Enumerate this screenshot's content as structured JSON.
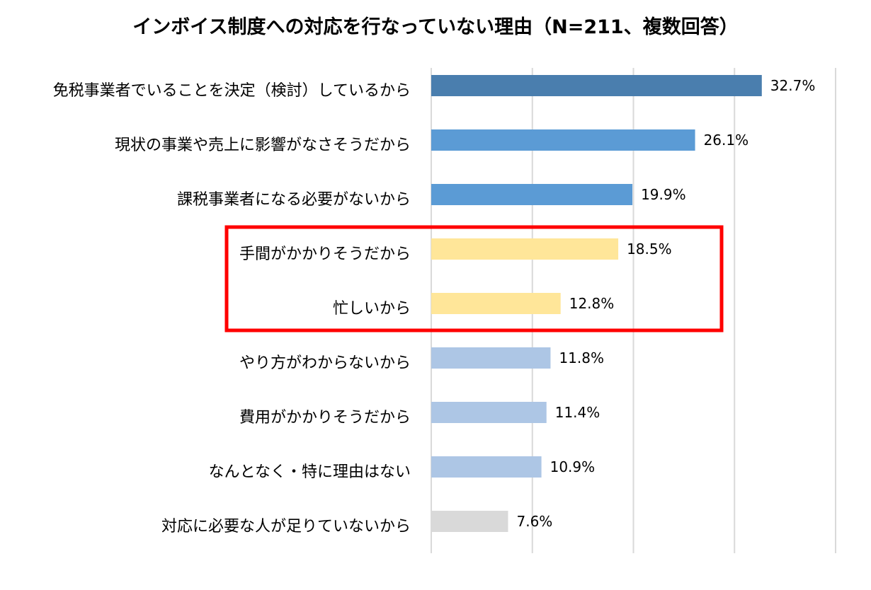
{
  "chart_data": {
    "type": "bar",
    "orientation": "horizontal",
    "title": "インボイス制度への対応を行なっていない理由（N=211、複数回答）",
    "categories": [
      "免税事業者でいることを決定（検討）しているから",
      "現状の事業や売上に影響がなさそうだから",
      "課税事業者になる必要がないから",
      "手間がかかりそうだから",
      "忙しいから",
      "やり方がわからないから",
      "費用がかかりそうだから",
      "なんとなく・特に理由はない",
      "対応に必要な人が足りていないから"
    ],
    "values": [
      32.7,
      26.1,
      19.9,
      18.5,
      12.8,
      11.8,
      11.4,
      10.9,
      7.6
    ],
    "value_labels": [
      "32.7%",
      "26.1%",
      "19.9%",
      "18.5%",
      "12.8%",
      "11.8%",
      "11.4%",
      "10.9%",
      "7.6%"
    ],
    "bar_colors": [
      "#4a7eae",
      "#5b9bd5",
      "#5b9bd5",
      "#ffe699",
      "#ffe699",
      "#adc6e5",
      "#adc6e5",
      "#adc6e5",
      "#d9d9d9"
    ],
    "xlim": [
      0,
      40
    ],
    "gridlines": [
      0,
      10,
      20,
      30,
      40
    ],
    "grid": true,
    "legend": "none",
    "highlight": {
      "categories": [
        "手間がかかりそうだから",
        "忙しいから"
      ],
      "color": "#ff0000"
    },
    "xlabel": "",
    "ylabel": ""
  }
}
